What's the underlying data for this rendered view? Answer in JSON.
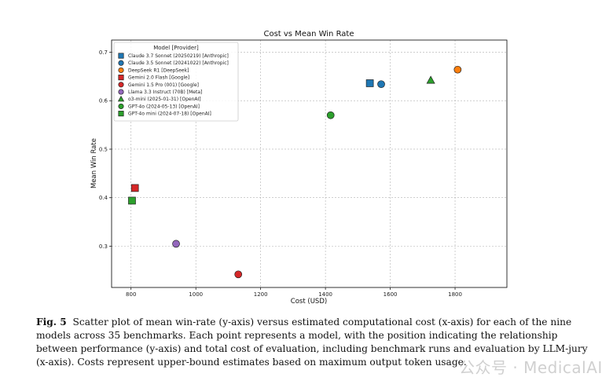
{
  "chart_data": {
    "type": "scatter",
    "title": "Cost vs Mean Win Rate",
    "xlabel": "Cost (USD)",
    "ylabel": "Mean Win Rate",
    "xlim": [
      740,
      1960
    ],
    "ylim": [
      0.215,
      0.725
    ],
    "xticks": [
      800,
      1000,
      1200,
      1400,
      1600,
      1800
    ],
    "yticks": [
      0.3,
      0.4,
      0.5,
      0.6,
      0.7
    ],
    "xtick_labels": [
      "800",
      "1000",
      "1200",
      "1400",
      "1600",
      "1800"
    ],
    "ytick_labels": [
      "0.3",
      "0.4",
      "0.5",
      "0.6",
      "0.7"
    ],
    "grid": true,
    "legend_title": "Model [Provider]",
    "legend_position": "upper-left",
    "series": [
      {
        "name": "Claude 3.7 Sonnet (20250219) [Anthropic]",
        "marker": "square",
        "color": "#1f77b4",
        "x": 1537,
        "y": 0.636
      },
      {
        "name": "Claude 3.5 Sonnet (20241022) [Anthropic]",
        "marker": "circle",
        "color": "#1f77b4",
        "x": 1572,
        "y": 0.634
      },
      {
        "name": "DeepSeek R1 [DeepSeek]",
        "marker": "circle",
        "color": "#ff7f0e",
        "x": 1808,
        "y": 0.664
      },
      {
        "name": "Gemini 2.0 Flash [Google]",
        "marker": "square",
        "color": "#d62728",
        "x": 812,
        "y": 0.42
      },
      {
        "name": "Gemini 1.5 Pro (001) [Google]",
        "marker": "circle",
        "color": "#d62728",
        "x": 1131,
        "y": 0.242
      },
      {
        "name": "Llama 3.3 Instruct (70B) [Meta]",
        "marker": "circle",
        "color": "#9467bd",
        "x": 939,
        "y": 0.305
      },
      {
        "name": "o3-mini (2025-01-31) [OpenAI]",
        "marker": "triangle",
        "color": "#2ca02c",
        "x": 1725,
        "y": 0.642
      },
      {
        "name": "GPT-4o (2024-05-13) [OpenAI]",
        "marker": "circle",
        "color": "#2ca02c",
        "x": 1416,
        "y": 0.57
      },
      {
        "name": "GPT-4o mini (2024-07-18) [OpenAI]",
        "marker": "square",
        "color": "#2ca02c",
        "x": 803,
        "y": 0.394
      }
    ]
  },
  "caption": {
    "label": "Fig. 5",
    "text": "Scatter plot of mean win-rate (y-axis) versus estimated computational cost (x-axis) for each of the nine models across 35 benchmarks. Each point represents a model, with the position indicating the relationship between performance (y-axis) and total cost of evaluation, including benchmark runs and evaluation by LLM-jury (x-axis). Costs represent upper-bound estimates based on maximum output token usage."
  },
  "watermark": "公众号 · MedicalAI"
}
